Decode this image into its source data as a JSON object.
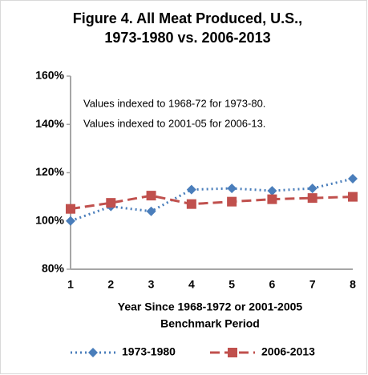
{
  "chart_data": {
    "type": "line",
    "title": [
      "Figure 4.  All Meat Produced, U.S.,",
      "1973-1980 vs. 2006-2013"
    ],
    "annotations": [
      "Values indexed to 1968-72 for 1973-80.",
      "Values indexed to  2001-05 for 2006-13."
    ],
    "x_label": [
      "Year Since 1968-1972 or 2001-2005",
      "Benchmark Period"
    ],
    "categories": [
      "1",
      "2",
      "3",
      "4",
      "5",
      "6",
      "7",
      "8"
    ],
    "series": [
      {
        "name": "1973-1980",
        "color": "#4a7ebb",
        "marker": "diamond",
        "dash": "dotted",
        "values": [
          100,
          106,
          104,
          113,
          113.5,
          112.5,
          113.5,
          117.5
        ]
      },
      {
        "name": "2006-2013",
        "color": "#c0504d",
        "marker": "square",
        "dash": "dashed",
        "values": [
          105,
          107.5,
          110.5,
          107,
          108,
          109,
          109.5,
          110
        ]
      }
    ],
    "ylim": [
      80,
      160
    ],
    "yticks": [
      {
        "value": 80,
        "label": "80%"
      },
      {
        "value": 100,
        "label": "100%"
      },
      {
        "value": 120,
        "label": "120%"
      },
      {
        "value": 140,
        "label": "140%"
      },
      {
        "value": 160,
        "label": "160%"
      }
    ],
    "legend": "bottom"
  }
}
